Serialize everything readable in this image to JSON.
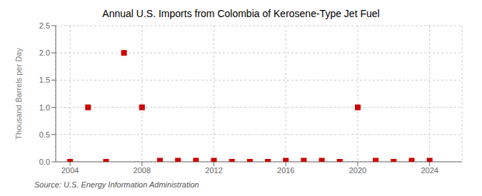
{
  "chart_data": {
    "type": "scatter",
    "title": "Annual U.S. Imports from Colombia of Kerosene-Type Jet Fuel",
    "y_label": "Thousand Barrels per Day",
    "annotation": "Source: U.S. Energy Information Administration",
    "x": [
      2004,
      2005,
      2006,
      2007,
      2008,
      2009,
      2010,
      2011,
      2012,
      2013,
      2014,
      2015,
      2016,
      2017,
      2018,
      2019,
      2020,
      2021,
      2022,
      2023,
      2024
    ],
    "values": [
      0.0,
      1.0,
      0.0,
      2.0,
      1.0,
      0.02,
      0.02,
      0.02,
      0.02,
      0.0,
      0.0,
      0.0,
      0.02,
      0.02,
      0.02,
      0.0,
      1.0,
      0.02,
      0.0,
      0.02,
      0.02
    ],
    "color": "#cc0000",
    "marker": "square",
    "xlim": [
      2003.2,
      2025.8
    ],
    "xticks": [
      2004,
      2008,
      2012,
      2016,
      2020,
      2024
    ],
    "ylim": [
      0.0,
      2.5
    ],
    "yticks": [
      {
        "value": 0.0,
        "label": "0.0"
      },
      0.5,
      {
        "value": 1.0,
        "label": "1.0"
      },
      1.5,
      {
        "value": 2.0,
        "label": "2.0"
      },
      2.5
    ],
    "grid": true
  }
}
